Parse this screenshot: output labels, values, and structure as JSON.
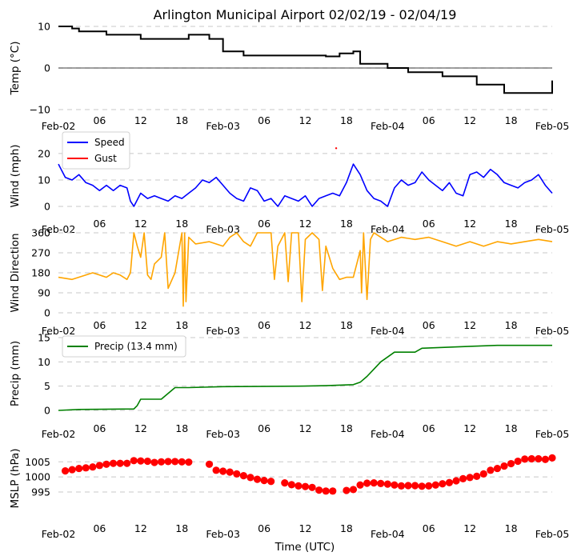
{
  "chart_data": {
    "type": "line",
    "title": "Arlington Municipal Airport 02/02/19 - 02/04/19",
    "xlabel": "Time (UTC)",
    "x_range_hours": [
      0,
      72
    ],
    "x_tick_labels": [
      "Feb-02",
      "06",
      "12",
      "18",
      "Feb-03",
      "06",
      "12",
      "18",
      "Feb-04",
      "06",
      "12",
      "18",
      "Feb-05"
    ],
    "panels": [
      {
        "name": "temperature",
        "ylabel": "Temp (°C)",
        "ylim": [
          -10,
          10
        ],
        "yticks": [
          "10",
          "0",
          "−10"
        ],
        "zero_line": true,
        "series": [
          {
            "name": "Temp",
            "color": "#000000",
            "style": "step",
            "x": [
              0,
              2,
              3,
              6,
              7,
              11,
              12,
              18,
              19,
              21,
              22,
              24,
              27,
              36,
              39,
              41,
              43,
              44,
              46,
              48,
              51,
              54,
              56,
              58,
              61,
              63,
              65,
              67,
              72
            ],
            "y": [
              10,
              9.5,
              8.8,
              8.8,
              8,
              8,
              7,
              7,
              8,
              8,
              7,
              4,
              3,
              3,
              2.8,
              3.5,
              4,
              1,
              1,
              0,
              -1,
              -1,
              -2,
              -2,
              -4,
              -4,
              -6,
              -6,
              -3
            ]
          }
        ]
      },
      {
        "name": "wind_speed",
        "ylabel": "Wind (mph)",
        "ylim": [
          0,
          23
        ],
        "yticks": [
          "20",
          "10",
          "0"
        ],
        "legend": [
          "Speed",
          "Gust"
        ],
        "series": [
          {
            "name": "Speed",
            "color": "#0000ff",
            "style": "line",
            "x": [
              0,
              1,
              2,
              3,
              4,
              5,
              6,
              7,
              8,
              9,
              10,
              10.5,
              11,
              12,
              13,
              14,
              15,
              16,
              17,
              18,
              19,
              20,
              21,
              22,
              23,
              24,
              25,
              26,
              27,
              28,
              29,
              30,
              31,
              32,
              33,
              34,
              35,
              36,
              37,
              38,
              39,
              40,
              41,
              42,
              43,
              43.5,
              44,
              45,
              46,
              47,
              48,
              49,
              50,
              51,
              52,
              53,
              54,
              55,
              56,
              57,
              58,
              59,
              60,
              61,
              62,
              63,
              64,
              65,
              66,
              67,
              68,
              69,
              70,
              71,
              72
            ],
            "y": [
              16,
              11,
              10,
              12,
              9,
              8,
              6,
              8,
              6,
              8,
              7,
              2,
              0,
              5,
              3,
              4,
              3,
              2,
              4,
              3,
              5,
              7,
              10,
              9,
              11,
              8,
              5,
              3,
              2,
              7,
              6,
              2,
              3,
              0,
              4,
              3,
              2,
              4,
              0,
              3,
              4,
              5,
              4,
              9,
              16,
              14,
              12,
              6,
              3,
              2,
              0,
              7,
              10,
              8,
              9,
              13,
              10,
              8,
              6,
              9,
              5,
              4,
              12,
              13,
              11,
              14,
              12,
              9,
              8,
              7,
              9,
              10,
              12,
              8,
              5
            ]
          },
          {
            "name": "Gust",
            "color": "#ff0000",
            "style": "points",
            "x": [
              40.5
            ],
            "y": [
              22
            ]
          }
        ]
      },
      {
        "name": "wind_direction",
        "ylabel": "Wind Direction",
        "ylim": [
          0,
          360
        ],
        "yticks": [
          "360",
          "270",
          "180",
          "90",
          "0"
        ],
        "series": [
          {
            "name": "Direction",
            "color": "#ffa500",
            "style": "line",
            "x": [
              0,
              2,
              4,
              5,
              6,
              7,
              8,
              9,
              10,
              10.5,
              11,
              11.5,
              12,
              12.5,
              13,
              13.5,
              14,
              15,
              15.5,
              16,
              17,
              18,
              18.2,
              18.4,
              18.6,
              19,
              20,
              22,
              24,
              25,
              26,
              27,
              28,
              29,
              30,
              31,
              31.5,
              32,
              33,
              33.5,
              34,
              35,
              35.5,
              36,
              37,
              38,
              38.5,
              39,
              40,
              41,
              42,
              43,
              44,
              44.2,
              44.5,
              45,
              45.5,
              46,
              47,
              48,
              50,
              52,
              54,
              56,
              58,
              60,
              62,
              64,
              66,
              68,
              70,
              72
            ],
            "y": [
              160,
              150,
              170,
              180,
              170,
              160,
              180,
              170,
              150,
              180,
              360,
              300,
              250,
              360,
              170,
              150,
              220,
              250,
              360,
              110,
              180,
              360,
              30,
              360,
              50,
              340,
              310,
              320,
              300,
              340,
              360,
              320,
              300,
              360,
              360,
              360,
              150,
              300,
              360,
              140,
              360,
              360,
              50,
              330,
              360,
              330,
              100,
              300,
              200,
              150,
              160,
              160,
              280,
              90,
              360,
              60,
              330,
              360,
              340,
              320,
              340,
              330,
              340,
              320,
              300,
              320,
              300,
              320,
              310,
              320,
              330,
              320
            ]
          }
        ]
      },
      {
        "name": "precip",
        "ylabel": "Precip (mm)",
        "ylim": [
          0,
          15
        ],
        "yticks": [
          "15",
          "10",
          "5",
          "0"
        ],
        "legend": [
          "Precip (13.4 mm)"
        ],
        "series": [
          {
            "name": "Precip (13.4 mm)",
            "color": "#008000",
            "style": "line",
            "x": [
              0,
              3,
              11,
              11.5,
              12,
              15,
              16,
              17,
              19,
              24,
              35,
              39,
              43,
              44,
              45,
              46,
              47,
              48,
              49,
              52,
              53,
              60,
              64,
              72
            ],
            "y": [
              0,
              0.2,
              0.3,
              1,
              2.3,
              2.3,
              3.5,
              4.7,
              4.7,
              4.9,
              5,
              5.1,
              5.3,
              5.8,
              7,
              8.5,
              10,
              11,
              12,
              12,
              12.8,
              13.2,
              13.4,
              13.4
            ]
          }
        ]
      },
      {
        "name": "mslp",
        "ylabel": "MSLP (hPa)",
        "ylim": [
          991,
          1008
        ],
        "yticks": [
          "1005",
          "1000",
          "995"
        ],
        "series": [
          {
            "name": "MSLP",
            "color": "#ff0000",
            "style": "markers",
            "x": [
              1,
              2,
              3,
              4,
              5,
              6,
              7,
              8,
              9,
              10,
              11,
              12,
              13,
              14,
              15,
              16,
              17,
              18,
              19,
              22,
              23,
              24,
              25,
              26,
              27,
              28,
              29,
              30,
              31,
              33,
              34,
              35,
              36,
              37,
              38,
              39,
              40,
              42,
              43,
              44,
              45,
              46,
              47,
              48,
              49,
              50,
              51,
              52,
              53,
              54,
              55,
              56,
              57,
              58,
              59,
              60,
              61,
              62,
              63,
              64,
              65,
              66,
              67,
              68,
              69,
              70,
              71,
              72
            ],
            "y": [
              1002,
              1002.4,
              1002.8,
              1003,
              1003.3,
              1003.8,
              1004.2,
              1004.5,
              1004.5,
              1004.5,
              1005.4,
              1005.3,
              1005.2,
              1004.8,
              1005,
              1005.1,
              1005.1,
              1005,
              1004.9,
              1004.2,
              1002.2,
              1001.9,
              1001.6,
              1001,
              1000.4,
              999.8,
              999.2,
              998.8,
              998.5,
              998,
              997.4,
              997,
              996.8,
              996.5,
              995.6,
              995.3,
              995.3,
              995.5,
              995.8,
              997.3,
              997.9,
              998,
              997.8,
              997.6,
              997.3,
              997,
              997.1,
              997.1,
              996.9,
              997,
              997.3,
              997.7,
              998.1,
              998.7,
              999.4,
              999.8,
              1000.2,
              1001,
              1002.2,
              1002.8,
              1003.6,
              1004.4,
              1005.2,
              1005.9,
              1006,
              1006,
              1005.8,
              1006.3
            ]
          }
        ]
      }
    ]
  }
}
